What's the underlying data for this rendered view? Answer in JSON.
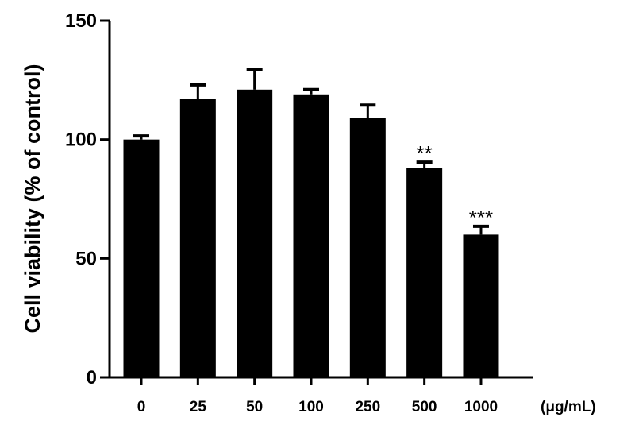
{
  "chart_data": {
    "type": "bar",
    "title": "",
    "ylabel": "Cell viability (% of control)",
    "xlabel": "",
    "x_unit": "(μg/mL)",
    "categories": [
      "0",
      "25",
      "50",
      "100",
      "250",
      "500",
      "1000"
    ],
    "values": [
      100,
      117,
      121,
      119,
      109,
      88,
      60
    ],
    "errors": [
      1.5,
      6,
      8.5,
      2,
      5.5,
      2.5,
      3.5
    ],
    "significance": [
      "",
      "",
      "",
      "",
      "",
      "**",
      "***"
    ],
    "ylim": [
      0,
      150
    ],
    "yticks": [
      0,
      50,
      100,
      150
    ],
    "bar_color": "#000000",
    "grid": false,
    "legend": "none"
  }
}
